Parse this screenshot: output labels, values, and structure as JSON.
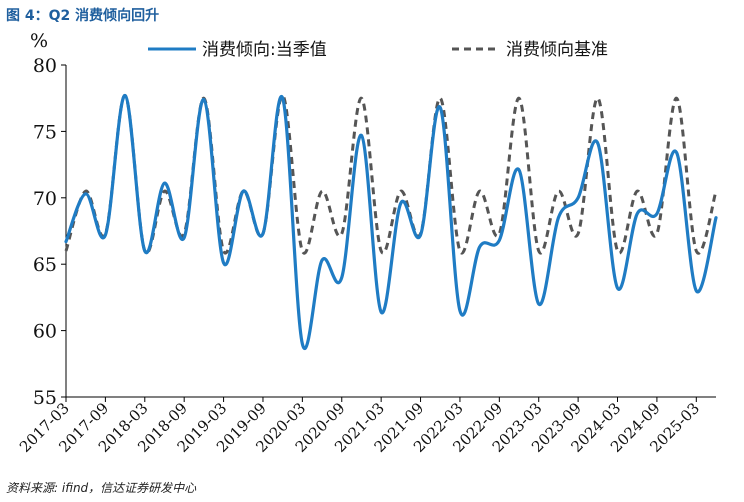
{
  "figure_title": "图 4：Q2 消费倾向回升",
  "source_note": "资料来源: ifind，信达证券研发中心",
  "colors": {
    "title": "#1f5f9e",
    "actual": "#1f7cc4",
    "baseline": "#555555"
  },
  "chart_data": {
    "type": "line",
    "ylabel": "%",
    "ylim": [
      55,
      80
    ],
    "yticks": [
      55,
      60,
      65,
      70,
      75,
      80
    ],
    "legend_position": "top",
    "xticks": [
      "2017-03",
      "2017-09",
      "2018-03",
      "2018-09",
      "2019-03",
      "2019-09",
      "2020-03",
      "2020-09",
      "2021-03",
      "2021-09",
      "2022-03",
      "2022-09",
      "2023-03",
      "2023-09",
      "2024-03",
      "2024-09",
      "2025-03"
    ],
    "x": [
      "2017-03",
      "2017-06",
      "2017-09",
      "2017-12",
      "2018-03",
      "2018-06",
      "2018-09",
      "2018-12",
      "2019-03",
      "2019-06",
      "2019-09",
      "2019-12",
      "2020-03",
      "2020-06",
      "2020-09",
      "2020-12",
      "2021-03",
      "2021-06",
      "2021-09",
      "2021-12",
      "2022-03",
      "2022-06",
      "2022-09",
      "2022-12",
      "2023-03",
      "2023-06",
      "2023-09",
      "2023-12",
      "2024-03",
      "2024-06",
      "2024-09",
      "2024-12",
      "2025-03",
      "2025-06"
    ],
    "series": [
      {
        "name": "消费倾向:当季值",
        "values": [
          66.7,
          70.3,
          67.2,
          77.7,
          66.0,
          71.1,
          67.0,
          77.4,
          65.1,
          70.5,
          67.3,
          77.5,
          59.0,
          65.3,
          64.0,
          74.7,
          61.4,
          69.6,
          67.2,
          76.8,
          61.5,
          66.3,
          66.8,
          72.1,
          62.0,
          68.5,
          70.0,
          74.1,
          63.2,
          68.8,
          68.8,
          73.4,
          63.0,
          68.5
        ]
      },
      {
        "name": "消费倾向基准",
        "values": [
          66.0,
          70.5,
          67.3,
          77.7,
          66.0,
          70.5,
          67.3,
          77.5,
          66.0,
          70.5,
          67.3,
          77.7,
          66.0,
          70.5,
          67.3,
          77.5,
          66.0,
          70.5,
          67.3,
          77.5,
          66.0,
          70.5,
          67.3,
          77.5,
          66.0,
          70.5,
          67.3,
          77.5,
          66.0,
          70.5,
          67.3,
          77.5,
          66.0,
          70.5
        ]
      }
    ]
  }
}
